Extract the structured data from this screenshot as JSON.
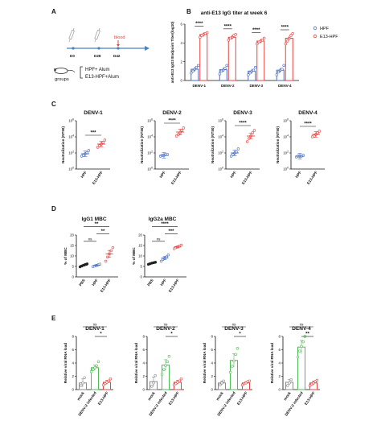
{
  "colors": {
    "blue": "#4a6fc2",
    "red": "#e8423f",
    "green": "#4cbf54",
    "gray": "#8a8a8a",
    "black": "#222222"
  },
  "panel_labels": {
    "a": "A",
    "b": "B",
    "c": "C",
    "d": "D",
    "e": "E"
  },
  "timeline": {
    "days": [
      "D0",
      "D28",
      "D42"
    ],
    "blood_label": "blood",
    "groups_label": "groups",
    "group_items": [
      "HPF+ Alum",
      "E13-HPF+Alum"
    ]
  },
  "chart_data": [
    {
      "panel": "B",
      "type": "bar",
      "title": "anti-E13 IgG titer at week 6",
      "ylabel": "anti-E13 IgG3 Endpoint Titer(log10)",
      "ylim": [
        0,
        6
      ],
      "yticks": [
        "0",
        "2",
        "4",
        "6"
      ],
      "categories": [
        "DENV-1",
        "DENV-2",
        "DENV-3",
        "DENV-4"
      ],
      "series": [
        {
          "name": "HPF",
          "color": "#4a6fc2",
          "values": [
            1.2,
            1.15,
            1.0,
            1.1
          ],
          "points": [
            [
              0.8,
              1.0,
              1.2,
              1.4,
              1.6
            ],
            [
              0.7,
              1.0,
              1.1,
              1.3,
              1.6
            ],
            [
              0.6,
              0.8,
              1.0,
              1.1,
              1.4
            ],
            [
              0.6,
              0.9,
              1.1,
              1.2,
              1.6
            ]
          ]
        },
        {
          "name": "E13-HPF",
          "color": "#e8423f",
          "values": [
            4.9,
            4.6,
            4.2,
            4.5
          ],
          "points": [
            [
              4.6,
              4.8,
              4.9,
              5.0,
              5.1
            ],
            [
              4.3,
              4.5,
              4.6,
              4.8,
              4.9
            ],
            [
              3.9,
              4.1,
              4.2,
              4.3,
              4.5
            ],
            [
              3.9,
              4.2,
              4.5,
              4.8,
              5.0
            ]
          ]
        }
      ],
      "significance": [
        "****",
        "****",
        "****",
        "****"
      ]
    },
    {
      "panel": "C",
      "type": "scatter",
      "title": "DENV-1",
      "ylabel": "Neutralization (NT50)",
      "yscale": "log",
      "ylim_exp": [
        0,
        6
      ],
      "yticks": [
        "10^0",
        "10^2",
        "10^4",
        "10^6"
      ],
      "categories": [
        "HPF",
        "E13-HPF"
      ],
      "significance": "***",
      "groups": [
        {
          "color": "#4a6fc2",
          "fill": false,
          "mean_exp": 1.9,
          "points_exp": [
            1.6,
            1.7,
            1.9,
            2.0,
            2.3
          ]
        },
        {
          "color": "#e8423f",
          "fill": false,
          "mean_exp": 3.1,
          "points_exp": [
            2.7,
            2.9,
            3.1,
            3.3,
            3.6
          ]
        }
      ]
    },
    {
      "panel": "C",
      "type": "scatter",
      "title": "DENV-2",
      "ylabel": "Neutralization (NT50)",
      "yscale": "log",
      "ylim_exp": [
        0,
        6
      ],
      "yticks": [
        "10^0",
        "10^2",
        "10^4",
        "10^6"
      ],
      "categories": [
        "HPF",
        "E13-HPF"
      ],
      "significance": "****",
      "groups": [
        {
          "color": "#4a6fc2",
          "fill": false,
          "mean_exp": 1.7,
          "points_exp": [
            1.6,
            1.7,
            1.7,
            1.8,
            1.8
          ]
        },
        {
          "color": "#e8423f",
          "fill": false,
          "mean_exp": 4.6,
          "points_exp": [
            4.1,
            4.3,
            4.5,
            4.8,
            5.1
          ]
        }
      ]
    },
    {
      "panel": "C",
      "type": "scatter",
      "title": "DENV-3",
      "ylabel": "Neutralization (NT50)",
      "yscale": "log",
      "ylim_exp": [
        0,
        6
      ],
      "yticks": [
        "10^0",
        "10^2",
        "10^4",
        "10^6"
      ],
      "categories": [
        "HPF",
        "E13-HPF"
      ],
      "significance": "****",
      "groups": [
        {
          "color": "#4a6fc2",
          "fill": false,
          "mean_exp": 2.0,
          "points_exp": [
            1.6,
            1.8,
            2.0,
            2.1,
            2.5
          ]
        },
        {
          "color": "#e8423f",
          "fill": false,
          "mean_exp": 4.1,
          "points_exp": [
            3.4,
            3.8,
            4.1,
            4.5,
            4.8
          ]
        }
      ]
    },
    {
      "panel": "C",
      "type": "scatter",
      "title": "DENV-4",
      "ylabel": "Neutralization (NT50)",
      "yscale": "log",
      "ylim_exp": [
        0,
        6
      ],
      "yticks": [
        "10^0",
        "10^2",
        "10^4",
        "10^6"
      ],
      "categories": [
        "HPF",
        "E13-HPF"
      ],
      "significance": "****",
      "groups": [
        {
          "color": "#4a6fc2",
          "fill": false,
          "mean_exp": 1.6,
          "points_exp": [
            1.5,
            1.6,
            1.6,
            1.6,
            1.7
          ]
        },
        {
          "color": "#e8423f",
          "fill": false,
          "mean_exp": 4.3,
          "points_exp": [
            4.0,
            4.1,
            4.3,
            4.5,
            4.7
          ]
        }
      ]
    },
    {
      "panel": "D",
      "type": "scatter",
      "title": "IgG1 MBC",
      "ylabel": "% of MBC",
      "ylim": [
        0,
        20
      ],
      "yticks": [
        "0",
        "5",
        "10",
        "15",
        "20"
      ],
      "categories": [
        "PBS",
        "HPF",
        "E13-HPF"
      ],
      "groups": [
        {
          "color": "#222222",
          "fill": true,
          "mean": 5.5,
          "points": [
            4.8,
            5.2,
            5.6,
            6.0,
            6.2
          ]
        },
        {
          "color": "#4a6fc2",
          "fill": false,
          "mean": 5.5,
          "points": [
            4.9,
            5.2,
            5.5,
            5.8,
            6.1
          ]
        },
        {
          "color": "#e8423f",
          "fill": false,
          "mean": 11.0,
          "points": [
            7.5,
            9.5,
            11.0,
            12.5,
            14.0
          ]
        }
      ],
      "comparisons": [
        {
          "from": 0,
          "to": 1,
          "label": "ns"
        },
        {
          "from": 1,
          "to": 2,
          "label": "**"
        },
        {
          "from": 0,
          "to": 2,
          "label": "**"
        }
      ]
    },
    {
      "panel": "D",
      "type": "scatter",
      "title": "IgG2a MBC",
      "ylabel": "% of MBC",
      "ylim": [
        0,
        20
      ],
      "yticks": [
        "0",
        "5",
        "10",
        "15",
        "20"
      ],
      "categories": [
        "PBS",
        "HPF",
        "E13-HPF"
      ],
      "groups": [
        {
          "color": "#222222",
          "fill": true,
          "mean": 6.5,
          "points": [
            6.0,
            6.3,
            6.6,
            6.8,
            7.0
          ]
        },
        {
          "color": "#4a6fc2",
          "fill": false,
          "mean": 9.0,
          "points": [
            7.5,
            8.3,
            9.0,
            9.6,
            10.5
          ]
        },
        {
          "color": "#e8423f",
          "fill": false,
          "mean": 14.3,
          "points": [
            13.5,
            14.0,
            14.3,
            14.8,
            15.2
          ]
        }
      ],
      "comparisons": [
        {
          "from": 0,
          "to": 1,
          "label": "ns"
        },
        {
          "from": 1,
          "to": 2,
          "label": "***"
        },
        {
          "from": 0,
          "to": 2,
          "label": "****"
        }
      ]
    },
    {
      "panel": "E",
      "type": "bar",
      "title": "DENV-1",
      "ylabel": "Relative viral RNA load",
      "ylim": [
        0,
        8
      ],
      "yticks": [
        "0",
        "2",
        "4",
        "6",
        "8"
      ],
      "categories": [
        "mock",
        "DENV-2 infected",
        "E13-HPF"
      ],
      "groups": [
        {
          "color": "#8a8a8a",
          "value": 1.0,
          "err": 0.6,
          "points": [
            0.6,
            1.0,
            1.8
          ]
        },
        {
          "color": "#4cbf54",
          "value": 3.3,
          "err": 0.4,
          "points": [
            2.7,
            3.0,
            3.3,
            3.6,
            4.2
          ]
        },
        {
          "color": "#e8423f",
          "value": 1.1,
          "err": 0.3,
          "points": [
            0.7,
            0.9,
            1.1,
            1.3,
            1.6
          ]
        }
      ],
      "comparisons": [
        {
          "from": 1,
          "to": 2,
          "label": "*"
        },
        {
          "from": 0,
          "to": 2,
          "label": "ns"
        }
      ]
    },
    {
      "panel": "E",
      "type": "bar",
      "title": "DENV-2",
      "ylabel": "Relative viral RNA load",
      "ylim": [
        0,
        8
      ],
      "yticks": [
        "0",
        "2",
        "4",
        "6",
        "8"
      ],
      "categories": [
        "mock",
        "DENV-2 infected",
        "E13-HPF"
      ],
      "groups": [
        {
          "color": "#8a8a8a",
          "value": 1.2,
          "err": 0.7,
          "points": [
            0.5,
            1.0,
            2.1
          ]
        },
        {
          "color": "#4cbf54",
          "value": 3.7,
          "err": 0.8,
          "points": [
            2.3,
            3.0,
            3.6,
            4.2,
            5.0
          ]
        },
        {
          "color": "#e8423f",
          "value": 1.1,
          "err": 0.3,
          "points": [
            0.7,
            0.9,
            1.1,
            1.3,
            1.6
          ]
        }
      ],
      "comparisons": [
        {
          "from": 1,
          "to": 2,
          "label": "*"
        },
        {
          "from": 0,
          "to": 2,
          "label": "ns"
        }
      ]
    },
    {
      "panel": "E",
      "type": "bar",
      "title": "DENV-3",
      "ylabel": "Relative viral RNA load",
      "ylim": [
        0,
        8
      ],
      "yticks": [
        "0",
        "2",
        "4",
        "6",
        "8"
      ],
      "categories": [
        "mock",
        "DENV-2 infected",
        "E13-HPF"
      ],
      "groups": [
        {
          "color": "#8a8a8a",
          "value": 1.0,
          "err": 0.3,
          "points": [
            0.7,
            1.0,
            1.3
          ]
        },
        {
          "color": "#4cbf54",
          "value": 4.4,
          "err": 1.0,
          "points": [
            2.6,
            3.5,
            4.3,
            5.3,
            6.2
          ]
        },
        {
          "color": "#e8423f",
          "value": 1.0,
          "err": 0.2,
          "points": [
            0.7,
            0.9,
            1.0,
            1.2,
            1.3
          ]
        }
      ],
      "comparisons": [
        {
          "from": 1,
          "to": 2,
          "label": "*"
        },
        {
          "from": 0,
          "to": 2,
          "label": "ns"
        }
      ]
    },
    {
      "panel": "E",
      "type": "bar",
      "title": "DENV-4",
      "ylabel": "Relative viral RNA load",
      "ylim": [
        0,
        8
      ],
      "yticks": [
        "0",
        "2",
        "4",
        "6",
        "8"
      ],
      "categories": [
        "mock",
        "DENV-2 infected",
        "E13-HPF"
      ],
      "groups": [
        {
          "color": "#8a8a8a",
          "value": 1.1,
          "err": 0.4,
          "points": [
            0.6,
            1.0,
            1.5
          ]
        },
        {
          "color": "#4cbf54",
          "value": 6.4,
          "err": 1.0,
          "points": [
            4.9,
            5.8,
            6.5,
            7.2,
            8.0
          ]
        },
        {
          "color": "#e8423f",
          "value": 1.0,
          "err": 0.3,
          "points": [
            0.6,
            0.8,
            1.0,
            1.2,
            1.4
          ]
        }
      ],
      "comparisons": [
        {
          "from": 1,
          "to": 2,
          "label": "**"
        },
        {
          "from": 0,
          "to": 2,
          "label": "ns"
        }
      ]
    }
  ]
}
